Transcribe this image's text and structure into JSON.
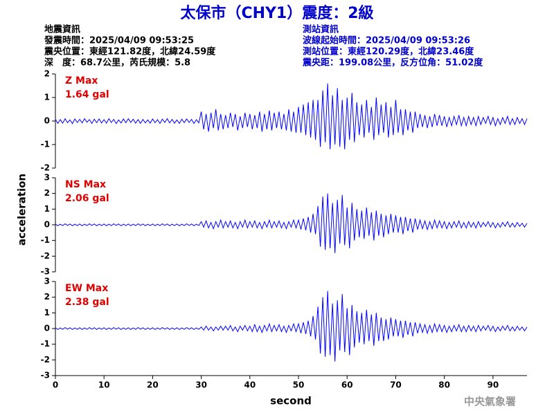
{
  "header": {
    "title": "太保市（CHY1）震度：2級",
    "left": [
      "地震資訊",
      "發震時間：2025/04/09 09:53:25",
      "震央位置：東經121.82度，北緯24.59度",
      "深　度：68.7公里，芮氏規模：5.8"
    ],
    "right": [
      "測站資訊",
      "波線起始時間：2025/04/09 09:53:26",
      "測站位置：東經120.29度，北緯23.46度",
      "震央距：199.08公里，反方位角：51.02度"
    ]
  },
  "footer": "中央氣象署",
  "chart_data": {
    "type": "line",
    "x_label": "second",
    "y_label": "acceleration",
    "xlim": [
      0,
      97
    ],
    "xticks": [
      0,
      10,
      20,
      30,
      40,
      50,
      60,
      70,
      80,
      90
    ],
    "x": [
      0,
      0.5,
      1,
      1.5,
      2,
      2.5,
      3,
      3.5,
      4,
      4.5,
      5,
      5.5,
      6,
      6.5,
      7,
      7.5,
      8,
      8.5,
      9,
      9.5,
      10,
      10.5,
      11,
      11.5,
      12,
      12.5,
      13,
      13.5,
      14,
      14.5,
      15,
      15.5,
      16,
      16.5,
      17,
      17.5,
      18,
      18.5,
      19,
      19.5,
      20,
      20.5,
      21,
      21.5,
      22,
      22.5,
      23,
      23.5,
      24,
      24.5,
      25,
      25.5,
      26,
      26.5,
      27,
      27.5,
      28,
      28.5,
      29,
      29.5,
      30,
      30.5,
      31,
      31.5,
      32,
      32.5,
      33,
      33.5,
      34,
      34.5,
      35,
      35.5,
      36,
      36.5,
      37,
      37.5,
      38,
      38.5,
      39,
      39.5,
      40,
      40.5,
      41,
      41.5,
      42,
      42.5,
      43,
      43.5,
      44,
      44.5,
      45,
      45.5,
      46,
      46.5,
      47,
      47.5,
      48,
      48.5,
      49,
      49.5,
      50,
      50.5,
      51,
      51.5,
      52,
      52.5,
      53,
      53.5,
      54,
      54.5,
      55,
      55.5,
      56,
      56.5,
      57,
      57.5,
      58,
      58.5,
      59,
      59.5,
      60,
      60.5,
      61,
      61.5,
      62,
      62.5,
      63,
      63.5,
      64,
      64.5,
      65,
      65.5,
      66,
      66.5,
      67,
      67.5,
      68,
      68.5,
      69,
      69.5,
      70,
      70.5,
      71,
      71.5,
      72,
      72.5,
      73,
      73.5,
      74,
      74.5,
      75,
      75.5,
      76,
      76.5,
      77,
      77.5,
      78,
      78.5,
      79,
      79.5,
      80,
      80.5,
      81,
      81.5,
      82,
      82.5,
      83,
      83.5,
      84,
      84.5,
      85,
      85.5,
      86,
      86.5,
      87,
      87.5,
      88,
      88.5,
      89,
      89.5,
      90,
      90.5,
      91,
      91.5,
      92,
      92.5,
      93,
      93.5,
      94,
      94.5,
      95,
      95.5,
      96,
      96.5,
      97
    ],
    "series": [
      {
        "name": "Z Max",
        "max_label": "1.64 gal",
        "color": "#0000ff",
        "label_color": "#e00000",
        "ylim": [
          -2,
          2
        ],
        "yticks": [
          -2,
          -1,
          0,
          1,
          2
        ],
        "values": [
          0.08,
          -0.1,
          0.06,
          -0.09,
          0.1,
          -0.07,
          0.05,
          -0.11,
          0.09,
          -0.06,
          0.07,
          -0.08,
          0.1,
          -0.05,
          0.06,
          -0.1,
          0.08,
          -0.07,
          0.09,
          -0.08,
          0.06,
          -0.09,
          0.1,
          -0.06,
          0.07,
          -0.11,
          0.05,
          -0.08,
          0.09,
          -0.07,
          0.1,
          -0.06,
          0.08,
          -0.09,
          0.06,
          -0.1,
          0.07,
          -0.08,
          0.05,
          -0.09,
          0.09,
          -0.07,
          0.06,
          -0.1,
          0.08,
          -0.06,
          0.1,
          -0.08,
          0.07,
          -0.09,
          0.05,
          -0.1,
          0.08,
          -0.07,
          0.09,
          -0.06,
          0.07,
          -0.1,
          0.06,
          -0.08,
          0.4,
          -0.35,
          0.3,
          -0.45,
          0.35,
          -0.3,
          0.5,
          -0.4,
          0.3,
          -0.35,
          0.25,
          -0.3,
          0.35,
          -0.25,
          0.3,
          -0.4,
          0.2,
          -0.3,
          0.35,
          -0.25,
          0.3,
          -0.35,
          0.25,
          -0.3,
          0.4,
          -0.45,
          0.3,
          -0.35,
          0.45,
          -0.4,
          0.35,
          -0.3,
          0.4,
          -0.35,
          0.3,
          -0.4,
          0.5,
          -0.45,
          0.4,
          -0.5,
          0.6,
          -0.5,
          0.7,
          -0.6,
          0.8,
          -0.7,
          0.9,
          -0.8,
          0.9,
          -1.1,
          1.3,
          -0.9,
          1.6,
          -1.2,
          1.1,
          -1.0,
          1.4,
          -1.1,
          0.9,
          -1.2,
          1.0,
          -0.8,
          1.2,
          -0.9,
          0.8,
          -0.6,
          0.7,
          -0.7,
          0.9,
          -0.5,
          0.6,
          -0.8,
          1.0,
          -0.6,
          0.7,
          -0.5,
          0.8,
          -0.7,
          0.6,
          -0.6,
          0.9,
          -0.5,
          0.5,
          -0.6,
          0.5,
          -0.4,
          0.4,
          -0.5,
          0.4,
          -0.3,
          0.3,
          -0.25,
          0.25,
          -0.3,
          0.2,
          -0.25,
          0.3,
          -0.2,
          0.25,
          -0.2,
          0.2,
          -0.25,
          0.15,
          -0.2,
          0.2,
          -0.15,
          0.25,
          -0.2,
          0.15,
          -0.2,
          0.2,
          -0.15,
          0.15,
          -0.2,
          0.2,
          -0.15,
          0.15,
          -0.1,
          0.2,
          -0.15,
          0.15,
          -0.2,
          0.1,
          -0.15,
          0.15,
          -0.1,
          0.2,
          -0.15,
          0.1,
          -0.15,
          0.15,
          -0.1,
          0.1,
          -0.15,
          0.1
        ]
      },
      {
        "name": "NS Max",
        "max_label": "2.06 gal",
        "color": "#0000ff",
        "label_color": "#e00000",
        "ylim": [
          -3,
          3
        ],
        "yticks": [
          -3,
          -2,
          -1,
          0,
          1,
          2,
          3
        ],
        "values": [
          0.05,
          -0.06,
          0.04,
          -0.05,
          0.06,
          -0.04,
          0.05,
          -0.06,
          0.04,
          -0.05,
          0.05,
          -0.06,
          0.04,
          -0.05,
          0.06,
          -0.04,
          0.05,
          -0.06,
          0.04,
          -0.05,
          0.05,
          -0.06,
          0.04,
          -0.05,
          0.06,
          -0.04,
          0.05,
          -0.06,
          0.04,
          -0.05,
          0.05,
          -0.06,
          0.04,
          -0.05,
          0.06,
          -0.04,
          0.05,
          -0.06,
          0.04,
          -0.05,
          0.05,
          -0.06,
          0.04,
          -0.05,
          0.06,
          -0.04,
          0.05,
          -0.06,
          0.04,
          -0.05,
          0.05,
          -0.06,
          0.04,
          -0.05,
          0.06,
          -0.04,
          0.05,
          -0.06,
          0.04,
          -0.05,
          0.2,
          -0.15,
          0.25,
          -0.2,
          0.15,
          -0.25,
          0.2,
          -0.15,
          0.3,
          -0.2,
          0.2,
          -0.15,
          0.25,
          -0.2,
          0.15,
          -0.25,
          0.2,
          -0.15,
          0.3,
          -0.2,
          0.2,
          -0.15,
          0.25,
          -0.2,
          0.15,
          -0.25,
          0.2,
          -0.15,
          0.3,
          -0.2,
          0.2,
          -0.15,
          0.25,
          -0.2,
          0.15,
          -0.25,
          0.2,
          -0.15,
          0.3,
          -0.2,
          0.3,
          -0.3,
          0.4,
          -0.35,
          0.5,
          -0.5,
          0.7,
          -0.6,
          1.2,
          -1.4,
          1.8,
          -1.6,
          2.0,
          -1.5,
          1.4,
          -1.8,
          1.6,
          -1.2,
          1.9,
          -1.3,
          1.1,
          -1.5,
          1.4,
          -1.0,
          1.0,
          -0.8,
          0.9,
          -0.9,
          1.1,
          -0.7,
          0.8,
          -1.0,
          0.9,
          -0.7,
          0.7,
          -0.8,
          0.6,
          -0.6,
          0.7,
          -0.5,
          0.6,
          -0.5,
          0.5,
          -0.6,
          0.5,
          -0.4,
          0.4,
          -0.5,
          0.4,
          -0.3,
          0.3,
          -0.25,
          0.25,
          -0.3,
          0.2,
          -0.25,
          0.3,
          -0.2,
          0.25,
          -0.2,
          0.2,
          -0.25,
          0.15,
          -0.2,
          0.2,
          -0.15,
          0.25,
          -0.2,
          0.15,
          -0.2,
          0.2,
          -0.15,
          0.15,
          -0.2,
          0.2,
          -0.15,
          0.15,
          -0.1,
          0.2,
          -0.15,
          0.15,
          -0.2,
          0.1,
          -0.15,
          0.15,
          -0.1,
          0.2,
          -0.15,
          0.1,
          -0.15,
          0.15,
          -0.1,
          0.1,
          -0.15,
          0.1
        ]
      },
      {
        "name": "EW Max",
        "max_label": "2.38 gal",
        "color": "#0000ff",
        "label_color": "#e00000",
        "ylim": [
          -3,
          3
        ],
        "yticks": [
          -3,
          -2,
          -1,
          0,
          1,
          2,
          3
        ],
        "values": [
          0.05,
          -0.06,
          0.04,
          -0.05,
          0.06,
          -0.04,
          0.05,
          -0.06,
          0.04,
          -0.05,
          0.05,
          -0.06,
          0.04,
          -0.05,
          0.06,
          -0.04,
          0.05,
          -0.06,
          0.04,
          -0.05,
          0.05,
          -0.06,
          0.04,
          -0.05,
          0.06,
          -0.04,
          0.05,
          -0.06,
          0.04,
          -0.05,
          0.05,
          -0.06,
          0.04,
          -0.05,
          0.06,
          -0.04,
          0.05,
          -0.06,
          0.04,
          -0.05,
          0.05,
          -0.06,
          0.04,
          -0.05,
          0.06,
          -0.04,
          0.05,
          -0.06,
          0.04,
          -0.05,
          0.05,
          -0.06,
          0.04,
          -0.05,
          0.06,
          -0.04,
          0.05,
          -0.06,
          0.04,
          -0.05,
          0.1,
          -0.1,
          0.15,
          -0.1,
          0.1,
          -0.15,
          0.1,
          -0.1,
          0.15,
          -0.1,
          0.15,
          -0.1,
          0.2,
          -0.15,
          0.1,
          -0.2,
          0.15,
          -0.1,
          0.2,
          -0.15,
          0.15,
          -0.2,
          0.25,
          -0.2,
          0.15,
          -0.25,
          0.2,
          -0.15,
          0.3,
          -0.2,
          0.2,
          -0.15,
          0.25,
          -0.2,
          0.15,
          -0.25,
          0.2,
          -0.15,
          0.3,
          -0.2,
          0.3,
          -0.3,
          0.4,
          -0.35,
          0.5,
          -0.5,
          0.8,
          -0.7,
          1.4,
          -1.6,
          2.0,
          -1.8,
          2.4,
          -1.7,
          1.6,
          -2.1,
          1.8,
          -1.4,
          2.2,
          -1.5,
          1.3,
          -1.7,
          1.5,
          -1.2,
          1.1,
          -0.9,
          1.0,
          -1.0,
          1.2,
          -0.8,
          0.9,
          -1.1,
          1.0,
          -0.8,
          0.7,
          -0.8,
          0.6,
          -0.7,
          0.7,
          -0.5,
          0.6,
          -0.5,
          0.5,
          -0.6,
          0.5,
          -0.4,
          0.4,
          -0.5,
          0.4,
          -0.3,
          0.3,
          -0.25,
          0.25,
          -0.3,
          0.2,
          -0.25,
          0.3,
          -0.2,
          0.25,
          -0.2,
          0.2,
          -0.25,
          0.15,
          -0.2,
          0.2,
          -0.15,
          0.25,
          -0.2,
          0.15,
          -0.2,
          0.2,
          -0.15,
          0.15,
          -0.2,
          0.2,
          -0.15,
          0.15,
          -0.1,
          0.2,
          -0.15,
          0.15,
          -0.2,
          0.1,
          -0.15,
          0.15,
          -0.1,
          0.2,
          -0.15,
          0.1,
          -0.15,
          0.15,
          -0.1,
          0.1,
          -0.15,
          0.1
        ]
      }
    ]
  }
}
